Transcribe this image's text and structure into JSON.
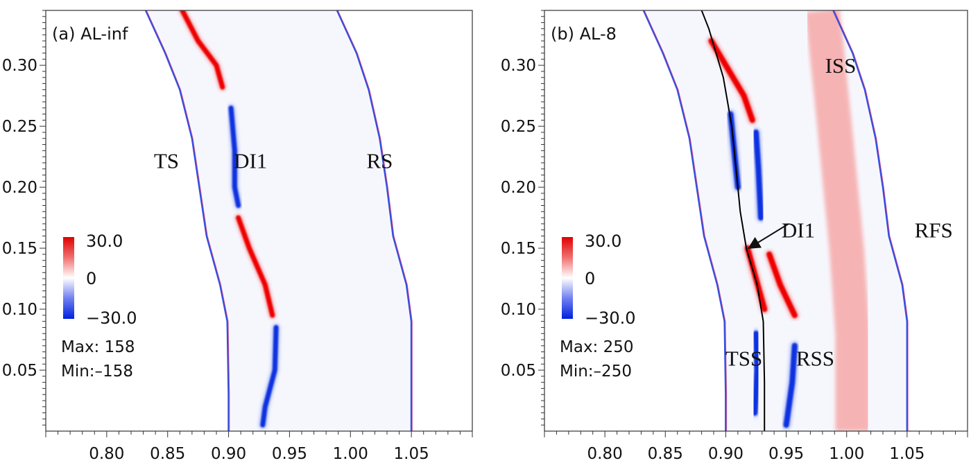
{
  "chart_data": [
    {
      "type": "heatmap",
      "panel_title": "(a) AL-inf",
      "x_ticks": [
        "0.80",
        "0.85",
        "0.90",
        "0.95",
        "1.00",
        "1.05"
      ],
      "y_ticks": [
        "0.05",
        "0.10",
        "0.15",
        "0.20",
        "0.25",
        "0.30"
      ],
      "xlim": [
        0.75,
        1.1
      ],
      "ylim": [
        0.0,
        0.345
      ],
      "colorbar": {
        "max_label": "30.0",
        "mid_label": "0",
        "min_label": "−30.0",
        "min": -30,
        "max": 30
      },
      "stats": {
        "max": "Max: 158",
        "min": "Min:–158"
      },
      "features": [
        {
          "label": "TS",
          "x": 0.849,
          "y": 0.222
        },
        {
          "label": "DI1",
          "x": 0.918,
          "y": 0.222
        },
        {
          "label": "RS",
          "x": 1.024,
          "y": 0.222
        }
      ],
      "shocks": [
        {
          "name": "TS",
          "points": [
            [
              0.9,
              0.0
            ],
            [
              0.9,
              0.03
            ],
            [
              0.899,
              0.09
            ],
            [
              0.893,
              0.12
            ],
            [
              0.882,
              0.16
            ],
            [
              0.876,
              0.2
            ],
            [
              0.87,
              0.24
            ],
            [
              0.86,
              0.28
            ],
            [
              0.848,
              0.31
            ],
            [
              0.832,
              0.345
            ]
          ]
        },
        {
          "name": "RS",
          "points": [
            [
              1.05,
              0.0
            ],
            [
              1.05,
              0.03
            ],
            [
              1.05,
              0.09
            ],
            [
              1.046,
              0.12
            ],
            [
              1.035,
              0.16
            ],
            [
              1.03,
              0.2
            ],
            [
              1.024,
              0.24
            ],
            [
              1.015,
              0.28
            ],
            [
              1.005,
              0.31
            ],
            [
              0.989,
              0.345
            ]
          ]
        }
      ],
      "streaks": [
        {
          "sign": "positive",
          "points": [
            [
              0.862,
              0.345
            ],
            [
              0.875,
              0.32
            ],
            [
              0.89,
              0.3
            ],
            [
              0.895,
              0.282
            ]
          ]
        },
        {
          "sign": "negative",
          "points": [
            [
              0.902,
              0.265
            ],
            [
              0.905,
              0.23
            ],
            [
              0.905,
              0.2
            ],
            [
              0.908,
              0.185
            ]
          ]
        },
        {
          "sign": "positive",
          "points": [
            [
              0.908,
              0.175
            ],
            [
              0.917,
              0.15
            ],
            [
              0.93,
              0.12
            ],
            [
              0.936,
              0.095
            ]
          ]
        },
        {
          "sign": "negative",
          "points": [
            [
              0.939,
              0.085
            ],
            [
              0.938,
              0.05
            ],
            [
              0.93,
              0.02
            ],
            [
              0.928,
              0.005
            ]
          ]
        }
      ],
      "bands": [],
      "interfaces": [],
      "arrows": []
    },
    {
      "type": "heatmap",
      "panel_title": "(b) AL-8",
      "x_ticks": [
        "0.80",
        "0.85",
        "0.90",
        "0.95",
        "1.00",
        "1.05"
      ],
      "y_ticks": [
        "0.05",
        "0.10",
        "0.15",
        "0.20",
        "0.25",
        "0.30"
      ],
      "xlim": [
        0.75,
        1.1
      ],
      "ylim": [
        0.0,
        0.345
      ],
      "colorbar": {
        "max_label": "30.0",
        "mid_label": "0",
        "min_label": "−30.0",
        "min": -30,
        "max": 30
      },
      "stats": {
        "max": "Max: 250",
        "min": "Min:–250"
      },
      "features": [
        {
          "label": "ISS",
          "x": 0.995,
          "y": 0.3
        },
        {
          "label": "DI1",
          "x": 0.96,
          "y": 0.165
        },
        {
          "label": "RFS",
          "x": 1.072,
          "y": 0.165
        },
        {
          "label": "TSS",
          "x": 0.915,
          "y": 0.06
        },
        {
          "label": "RSS",
          "x": 0.974,
          "y": 0.06
        }
      ],
      "shocks": [
        {
          "name": "TS",
          "points": [
            [
              0.9,
              0.0
            ],
            [
              0.9,
              0.03
            ],
            [
              0.899,
              0.09
            ],
            [
              0.893,
              0.12
            ],
            [
              0.882,
              0.16
            ],
            [
              0.876,
              0.2
            ],
            [
              0.87,
              0.24
            ],
            [
              0.86,
              0.28
            ],
            [
              0.848,
              0.31
            ],
            [
              0.832,
              0.345
            ]
          ]
        },
        {
          "name": "RFS",
          "points": [
            [
              1.05,
              0.0
            ],
            [
              1.05,
              0.03
            ],
            [
              1.05,
              0.09
            ],
            [
              1.046,
              0.12
            ],
            [
              1.035,
              0.16
            ],
            [
              1.03,
              0.2
            ],
            [
              1.024,
              0.24
            ],
            [
              1.015,
              0.28
            ],
            [
              1.005,
              0.31
            ],
            [
              0.989,
              0.345
            ]
          ]
        }
      ],
      "streaks": [
        {
          "sign": "positive",
          "points": [
            [
              0.888,
              0.32
            ],
            [
              0.9,
              0.3
            ],
            [
              0.915,
              0.275
            ],
            [
              0.922,
              0.255
            ]
          ]
        },
        {
          "sign": "negative",
          "points": [
            [
              0.904,
              0.26
            ],
            [
              0.907,
              0.23
            ],
            [
              0.91,
              0.2
            ]
          ]
        },
        {
          "sign": "negative",
          "points": [
            [
              0.925,
              0.245
            ],
            [
              0.927,
              0.215
            ],
            [
              0.929,
              0.175
            ]
          ]
        },
        {
          "sign": "positive",
          "points": [
            [
              0.918,
              0.15
            ],
            [
              0.925,
              0.125
            ],
            [
              0.932,
              0.1
            ]
          ]
        },
        {
          "sign": "positive",
          "points": [
            [
              0.936,
              0.145
            ],
            [
              0.945,
              0.12
            ],
            [
              0.957,
              0.095
            ]
          ]
        },
        {
          "sign": "negative",
          "points": [
            [
              0.925,
              0.08
            ],
            [
              0.926,
              0.05
            ],
            [
              0.924,
              0.015
            ]
          ]
        },
        {
          "sign": "negative",
          "points": [
            [
              0.957,
              0.07
            ],
            [
              0.955,
              0.04
            ],
            [
              0.95,
              0.005
            ]
          ]
        }
      ],
      "bands": [
        {
          "name": "ISS",
          "points": [
            [
              1.005,
              0.0
            ],
            [
              1.005,
              0.08
            ],
            [
              1.0,
              0.15
            ],
            [
              0.99,
              0.25
            ],
            [
              0.98,
              0.345
            ]
          ]
        }
      ],
      "interfaces": [
        {
          "name": "DI1",
          "points": [
            [
              0.932,
              0.0
            ],
            [
              0.932,
              0.04
            ],
            [
              0.931,
              0.09
            ],
            [
              0.926,
              0.12
            ],
            [
              0.917,
              0.15
            ],
            [
              0.912,
              0.18
            ],
            [
              0.908,
              0.22
            ],
            [
              0.905,
              0.25
            ],
            [
              0.898,
              0.29
            ],
            [
              0.886,
              0.33
            ],
            [
              0.88,
              0.345
            ]
          ]
        }
      ],
      "arrows": [
        {
          "from": [
            0.952,
            0.17
          ],
          "to": [
            0.919,
            0.15
          ]
        }
      ]
    }
  ]
}
